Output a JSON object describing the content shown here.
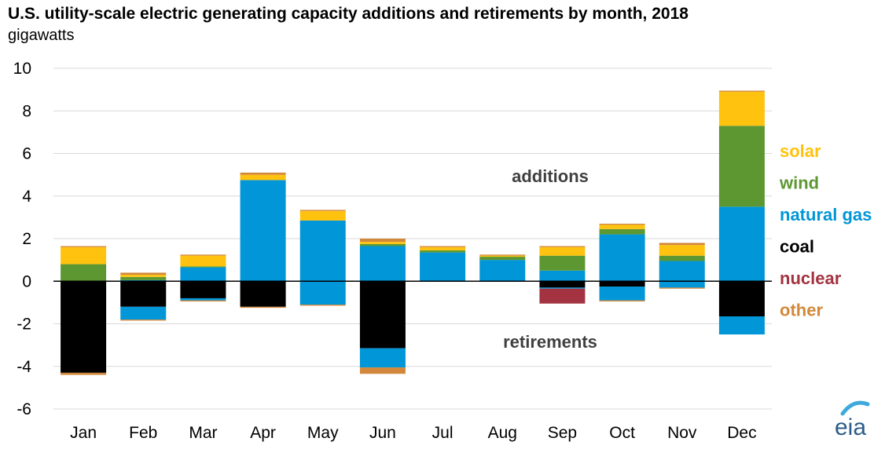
{
  "chart_data": {
    "type": "bar",
    "stacked": true,
    "title": "U.S. utility-scale electric generating capacity additions and retirements by month, 2018",
    "ylabel": "gigawatts",
    "xlabel": "",
    "ylim": [
      -6,
      10
    ],
    "yticks": [
      10,
      8,
      6,
      4,
      2,
      0,
      -2,
      -4,
      -6
    ],
    "grid": true,
    "legend_position": "right",
    "categories": [
      "Jan",
      "Feb",
      "Mar",
      "Apr",
      "May",
      "Jun",
      "Jul",
      "Aug",
      "Sep",
      "Oct",
      "Nov",
      "Dec"
    ],
    "annotations": {
      "additions": "additions",
      "retirements": "retirements"
    },
    "series": [
      {
        "name": "solar",
        "color": "#FFC20E",
        "additions": [
          0.8,
          0.1,
          0.5,
          0.25,
          0.45,
          0.1,
          0.15,
          0.05,
          0.4,
          0.2,
          0.5,
          1.6
        ],
        "retirements": [
          0,
          0,
          0,
          0,
          0,
          0,
          0,
          0,
          0,
          0,
          0,
          0
        ]
      },
      {
        "name": "wind",
        "color": "#5D9732",
        "additions": [
          0.8,
          0.15,
          0.05,
          0,
          0,
          0.1,
          0.1,
          0.15,
          0.7,
          0.25,
          0.25,
          3.8
        ],
        "retirements": [
          0,
          0,
          0,
          0,
          0,
          0,
          0,
          0,
          0,
          0,
          0,
          0
        ]
      },
      {
        "name": "natural gas",
        "color": "#0096D7",
        "additions": [
          0,
          0.05,
          0.65,
          4.75,
          2.85,
          1.65,
          1.35,
          1.0,
          0.5,
          2.2,
          0.95,
          3.5
        ],
        "retirements": [
          0,
          0.6,
          0.1,
          0,
          1.1,
          0.9,
          0,
          0,
          0.05,
          0.65,
          0.3,
          0.85
        ]
      },
      {
        "name": "coal",
        "color": "#000000",
        "additions": [
          0,
          0,
          0,
          0,
          0,
          0,
          0,
          0,
          0,
          0,
          0,
          0
        ],
        "retirements": [
          4.3,
          1.2,
          0.8,
          1.2,
          0,
          3.15,
          0,
          0,
          0.3,
          0.25,
          0,
          1.65
        ]
      },
      {
        "name": "nuclear",
        "color": "#A33340",
        "additions": [
          0,
          0,
          0,
          0,
          0,
          0,
          0,
          0,
          0,
          0,
          0,
          0
        ],
        "retirements": [
          0,
          0,
          0,
          0,
          0,
          0,
          0,
          0,
          0.7,
          0,
          0,
          0
        ]
      },
      {
        "name": "other",
        "color": "#D2883A",
        "additions": [
          0.05,
          0.1,
          0.05,
          0.1,
          0.05,
          0.15,
          0.05,
          0.05,
          0.05,
          0.05,
          0.1,
          0.05
        ],
        "retirements": [
          0.1,
          0.05,
          0.05,
          0.05,
          0.05,
          0.3,
          0,
          0,
          0,
          0.05,
          0.05,
          0
        ]
      }
    ]
  },
  "logo": {
    "text": "eia",
    "color": "#2B5C8A",
    "accent": "#3FA9DC"
  }
}
